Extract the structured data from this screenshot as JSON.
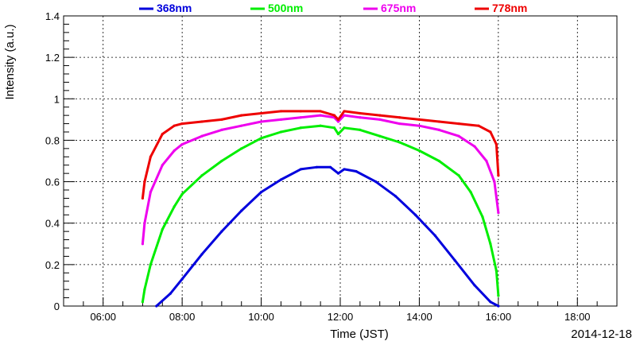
{
  "chart_data": {
    "type": "line",
    "title": "",
    "xlabel": "Time (JST)",
    "ylabel": "Intensity (a.u.)",
    "date_label": "2014-12-18",
    "x_unit": "hours (JST)",
    "xlim": [
      5,
      19
    ],
    "ylim": [
      0,
      1.4
    ],
    "x_ticks": [
      6,
      8,
      10,
      12,
      14,
      16,
      18
    ],
    "x_tick_labels": [
      "06:00",
      "08:00",
      "10:00",
      "12:00",
      "14:00",
      "16:00",
      "18:00"
    ],
    "y_ticks": [
      0,
      0.2,
      0.4,
      0.6,
      0.8,
      1,
      1.2,
      1.4
    ],
    "y_tick_labels": [
      "0",
      "0.2",
      "0.4",
      "0.6",
      "0.8",
      "1",
      "1.2",
      "1.4"
    ],
    "grid": true,
    "legend_position": "top",
    "series": [
      {
        "name": "368nm",
        "color": "#0000dd",
        "x": [
          7.35,
          7.7,
          8.0,
          8.5,
          9.0,
          9.5,
          10.0,
          10.5,
          11.0,
          11.4,
          11.75,
          11.95,
          12.1,
          12.4,
          12.9,
          13.4,
          13.9,
          14.4,
          14.9,
          15.4,
          15.8,
          16.0
        ],
        "values": [
          0.0,
          0.06,
          0.13,
          0.25,
          0.36,
          0.46,
          0.55,
          0.61,
          0.66,
          0.67,
          0.67,
          0.64,
          0.66,
          0.65,
          0.6,
          0.53,
          0.44,
          0.34,
          0.22,
          0.1,
          0.02,
          0.0
        ]
      },
      {
        "name": "500nm",
        "color": "#00ee00",
        "x": [
          7.0,
          7.05,
          7.2,
          7.5,
          7.8,
          8.0,
          8.5,
          9.0,
          9.5,
          10.0,
          10.5,
          11.0,
          11.5,
          11.85,
          11.95,
          12.1,
          12.5,
          13.0,
          13.5,
          14.0,
          14.5,
          15.0,
          15.3,
          15.6,
          15.8,
          15.95,
          16.0
        ],
        "values": [
          0.02,
          0.08,
          0.2,
          0.37,
          0.48,
          0.54,
          0.63,
          0.7,
          0.76,
          0.81,
          0.84,
          0.86,
          0.87,
          0.86,
          0.83,
          0.86,
          0.85,
          0.82,
          0.79,
          0.75,
          0.7,
          0.63,
          0.55,
          0.43,
          0.3,
          0.17,
          0.05
        ]
      },
      {
        "name": "675nm",
        "color": "#ee00ee",
        "x": [
          7.0,
          7.05,
          7.2,
          7.5,
          7.8,
          8.0,
          8.5,
          9.0,
          9.5,
          10.0,
          10.5,
          11.0,
          11.5,
          11.85,
          11.95,
          12.1,
          12.5,
          13.0,
          13.5,
          14.0,
          14.5,
          15.0,
          15.4,
          15.7,
          15.9,
          16.0
        ],
        "values": [
          0.3,
          0.4,
          0.55,
          0.68,
          0.75,
          0.78,
          0.82,
          0.85,
          0.87,
          0.89,
          0.9,
          0.91,
          0.92,
          0.91,
          0.89,
          0.92,
          0.91,
          0.9,
          0.88,
          0.87,
          0.85,
          0.82,
          0.77,
          0.7,
          0.6,
          0.45
        ]
      },
      {
        "name": "778nm",
        "color": "#ee0000",
        "x": [
          7.0,
          7.05,
          7.2,
          7.5,
          7.8,
          8.0,
          8.5,
          9.0,
          9.5,
          10.0,
          10.5,
          11.0,
          11.5,
          11.85,
          11.95,
          12.1,
          12.5,
          13.0,
          13.5,
          14.0,
          14.5,
          15.0,
          15.5,
          15.8,
          15.95,
          16.0
        ],
        "values": [
          0.52,
          0.6,
          0.72,
          0.83,
          0.87,
          0.88,
          0.89,
          0.9,
          0.92,
          0.93,
          0.94,
          0.94,
          0.94,
          0.92,
          0.9,
          0.94,
          0.93,
          0.92,
          0.91,
          0.9,
          0.89,
          0.88,
          0.87,
          0.84,
          0.78,
          0.63
        ]
      }
    ]
  }
}
